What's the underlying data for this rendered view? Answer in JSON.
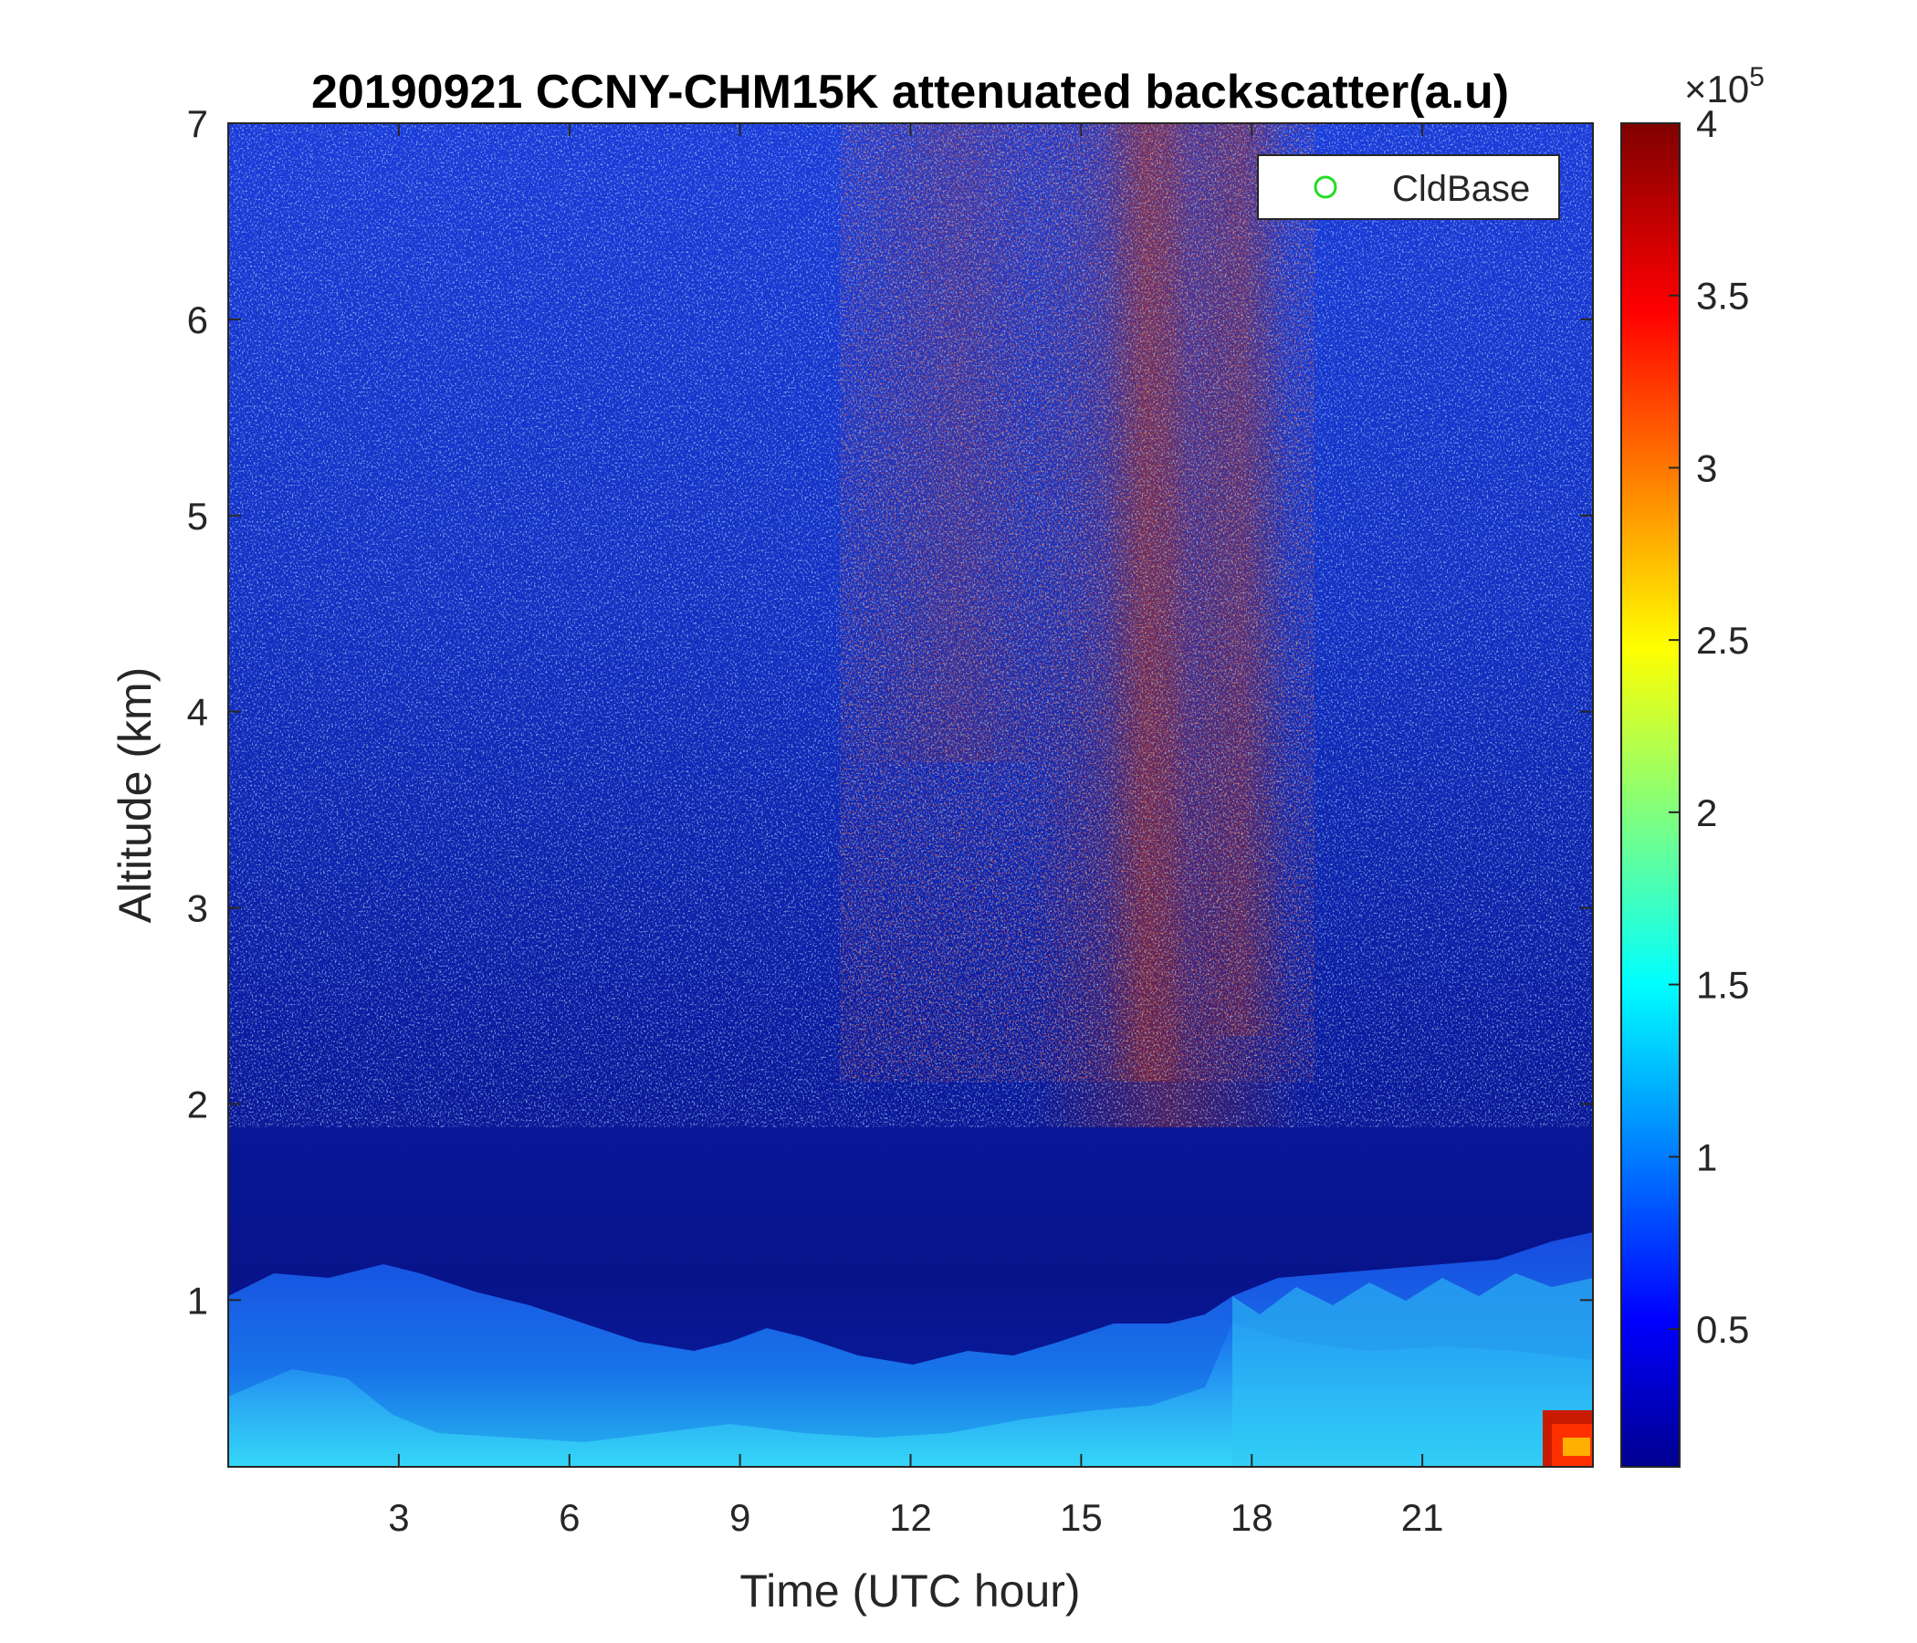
{
  "chart_data": {
    "type": "heatmap",
    "title": "20190921 CCNY-CHM15K attenuated backscatter(a.u)",
    "xlabel": "Time (UTC hour)",
    "ylabel": "Altitude (km)",
    "xlim": [
      0,
      24
    ],
    "ylim": [
      0.15,
      7
    ],
    "x_ticks": [
      3,
      6,
      9,
      12,
      15,
      18,
      21
    ],
    "y_ticks": [
      1,
      2,
      3,
      4,
      5,
      6,
      7
    ],
    "colorbar": {
      "colormap": "jet",
      "range": [
        0.1,
        4
      ],
      "ticks": [
        0.5,
        1,
        1.5,
        2,
        2.5,
        3,
        3.5,
        4
      ],
      "exponent_label": "×10",
      "exponent_power": "5"
    },
    "legend": {
      "placement": "top-right",
      "entries": [
        {
          "name": "CldBase",
          "marker": "circle",
          "color": "#22dd22"
        }
      ]
    }
  }
}
